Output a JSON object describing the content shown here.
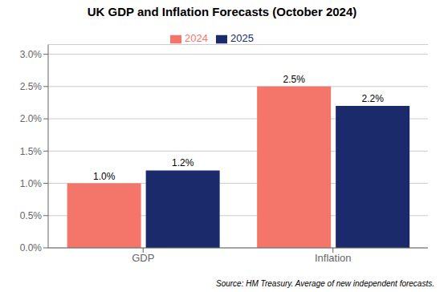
{
  "chart_data": {
    "type": "bar",
    "title": "UK GDP and Inflation Forecasts (October 2024)",
    "categories": [
      "GDP",
      "Inflation"
    ],
    "series": [
      {
        "name": "2024",
        "color": "#F4756A",
        "values": [
          0.01,
          0.025
        ],
        "value_labels": [
          "1.0%",
          "2.5%"
        ]
      },
      {
        "name": "2025",
        "color": "#1B2A6B",
        "values": [
          0.012,
          0.022
        ],
        "value_labels": [
          "1.2%",
          "2.2%"
        ]
      }
    ],
    "ylim": [
      0,
      0.0315
    ],
    "yticks": [
      {
        "value": 0.0,
        "label": "0.0%"
      },
      {
        "value": 0.005,
        "label": "0.5%"
      },
      {
        "value": 0.01,
        "label": "1.0%"
      },
      {
        "value": 0.015,
        "label": "1.5%"
      },
      {
        "value": 0.02,
        "label": "2.0%"
      },
      {
        "value": 0.025,
        "label": "2.5%"
      },
      {
        "value": 0.03,
        "label": "3.0%"
      }
    ],
    "grid": true,
    "legend": "top",
    "data_labels": true,
    "annotations": [
      "Source: HM Treasury. Average of new independent forecasts."
    ]
  }
}
